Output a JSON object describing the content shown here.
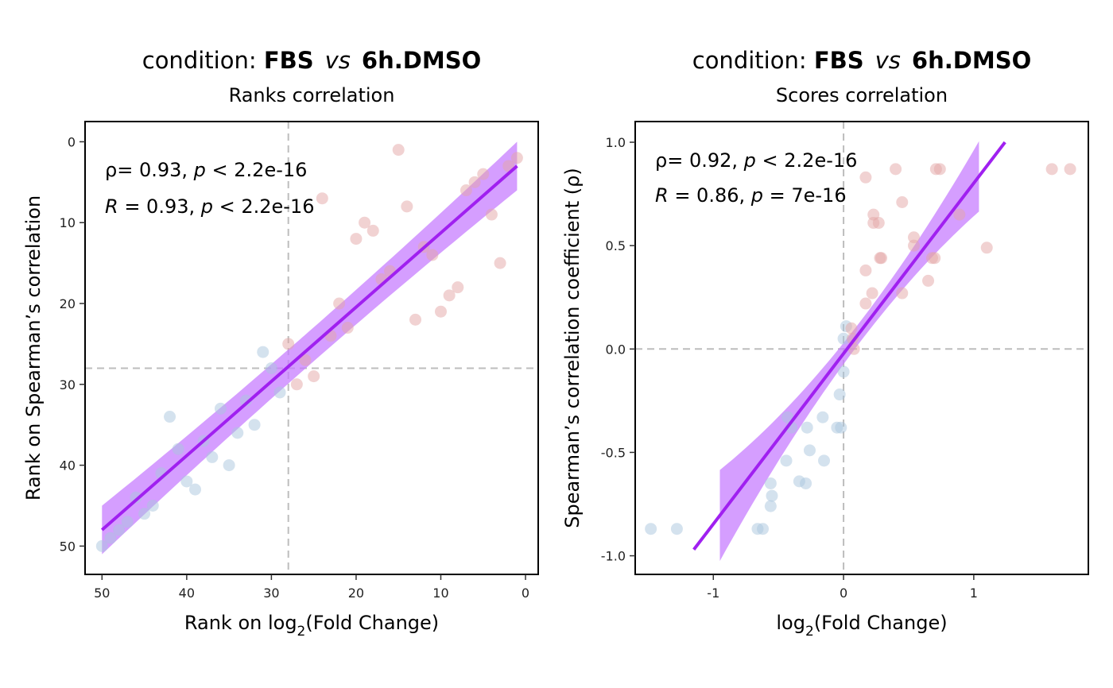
{
  "chart_data": [
    {
      "type": "scatter",
      "title": {
        "prefix": "condition: ",
        "group1": "FBS",
        "vs": "vs",
        "group2": "6h.DMSO"
      },
      "subtitle": "Ranks correlation",
      "xlabel": {
        "pre": "Rank on log",
        "sub": "2",
        "post": "(Fold Change)"
      },
      "ylabel": "Rank on Spearman’s correlation",
      "xlim": [
        52,
        -1.5
      ],
      "ylim": [
        -2.5,
        53.5
      ],
      "x_reversed": true,
      "y_reversed": true,
      "x_ticks": [
        50,
        40,
        30,
        20,
        10,
        0
      ],
      "y_ticks": [
        0,
        10,
        20,
        30,
        40,
        50
      ],
      "grid": false,
      "reference_lines": {
        "vertical": 28,
        "horizontal": 28
      },
      "stats": [
        {
          "label": "ρ",
          "eq": "= 0.93, ",
          "p": "p",
          "rest": " < 2.2e-16"
        },
        {
          "label": "R",
          "eq": " = 0.93, ",
          "p": "p",
          "rest": " < 2.2e-16"
        }
      ],
      "fit": {
        "x": [
          50,
          1
        ],
        "y": [
          48,
          3
        ],
        "band_halfwidth": [
          3.0,
          2.1,
          3.0
        ],
        "color": "#A020F0",
        "band_color": "#C77DFF"
      },
      "colors": {
        "high": "#E3A6A6",
        "low": "#A9C5DE"
      },
      "points": [
        {
          "x": 15,
          "y": 1,
          "c": "high"
        },
        {
          "x": 1,
          "y": 2,
          "c": "high"
        },
        {
          "x": 2,
          "y": 3,
          "c": "high"
        },
        {
          "x": 5,
          "y": 4,
          "c": "high"
        },
        {
          "x": 6,
          "y": 5,
          "c": "high"
        },
        {
          "x": 7,
          "y": 6,
          "c": "high"
        },
        {
          "x": 24,
          "y": 7,
          "c": "high"
        },
        {
          "x": 14,
          "y": 8,
          "c": "high"
        },
        {
          "x": 4,
          "y": 9,
          "c": "high"
        },
        {
          "x": 19,
          "y": 10,
          "c": "high"
        },
        {
          "x": 18,
          "y": 11,
          "c": "high"
        },
        {
          "x": 20,
          "y": 12,
          "c": "high"
        },
        {
          "x": 12,
          "y": 13,
          "c": "high"
        },
        {
          "x": 11,
          "y": 14,
          "c": "high"
        },
        {
          "x": 3,
          "y": 15,
          "c": "high"
        },
        {
          "x": 16,
          "y": 16,
          "c": "high"
        },
        {
          "x": 17,
          "y": 17,
          "c": "high"
        },
        {
          "x": 8,
          "y": 18,
          "c": "high"
        },
        {
          "x": 9,
          "y": 19,
          "c": "high"
        },
        {
          "x": 22,
          "y": 20,
          "c": "high"
        },
        {
          "x": 10,
          "y": 21,
          "c": "high"
        },
        {
          "x": 13,
          "y": 22,
          "c": "high"
        },
        {
          "x": 21,
          "y": 23,
          "c": "high"
        },
        {
          "x": 23,
          "y": 24,
          "c": "high"
        },
        {
          "x": 28,
          "y": 25,
          "c": "high"
        },
        {
          "x": 31,
          "y": 26,
          "c": "low"
        },
        {
          "x": 26,
          "y": 27,
          "c": "high"
        },
        {
          "x": 30,
          "y": 28,
          "c": "low"
        },
        {
          "x": 25,
          "y": 29,
          "c": "high"
        },
        {
          "x": 27,
          "y": 30,
          "c": "high"
        },
        {
          "x": 29,
          "y": 31,
          "c": "low"
        },
        {
          "x": 33,
          "y": 32,
          "c": "low"
        },
        {
          "x": 36,
          "y": 33,
          "c": "low"
        },
        {
          "x": 42,
          "y": 34,
          "c": "low"
        },
        {
          "x": 32,
          "y": 35,
          "c": "low"
        },
        {
          "x": 34,
          "y": 36,
          "c": "low"
        },
        {
          "x": 38,
          "y": 37,
          "c": "low"
        },
        {
          "x": 41,
          "y": 38,
          "c": "low"
        },
        {
          "x": 37,
          "y": 39,
          "c": "low"
        },
        {
          "x": 35,
          "y": 40,
          "c": "low"
        },
        {
          "x": 43,
          "y": 41,
          "c": "low"
        },
        {
          "x": 40,
          "y": 42,
          "c": "low"
        },
        {
          "x": 39,
          "y": 43,
          "c": "low"
        },
        {
          "x": 46,
          "y": 44,
          "c": "low"
        },
        {
          "x": 44,
          "y": 45,
          "c": "low"
        },
        {
          "x": 45,
          "y": 46,
          "c": "low"
        },
        {
          "x": 47,
          "y": 47,
          "c": "low"
        },
        {
          "x": 48,
          "y": 48,
          "c": "low"
        },
        {
          "x": 49,
          "y": 49,
          "c": "low"
        },
        {
          "x": 50,
          "y": 50,
          "c": "low"
        }
      ]
    },
    {
      "type": "scatter",
      "title": {
        "prefix": "condition: ",
        "group1": "FBS",
        "vs": "vs",
        "group2": "6h.DMSO"
      },
      "subtitle": "Scores correlation",
      "xlabel": {
        "pre": "log",
        "sub": "2",
        "post": "(Fold Change)"
      },
      "ylabel": "Spearman’s correlation coefficient (ρ)",
      "xlim": [
        -1.6,
        1.88
      ],
      "ylim": [
        -1.09,
        1.1
      ],
      "x_reversed": false,
      "y_reversed": false,
      "x_ticks": [
        -1,
        0,
        1
      ],
      "y_ticks": [
        1.0,
        0.5,
        0.0,
        -0.5,
        -1.0
      ],
      "y_tick_labels": [
        "1.0",
        "0.5",
        "0.0",
        "-0.5",
        "-1.0"
      ],
      "grid": false,
      "reference_lines": {
        "vertical": 0,
        "horizontal": 0
      },
      "stats": [
        {
          "label": "ρ",
          "eq": "= 0.92, ",
          "p": "p",
          "rest": " < 2.2e-16"
        },
        {
          "label": "R",
          "eq": " = 0.86, ",
          "p": "p",
          "rest": " = 7e-16"
        }
      ],
      "fit": {
        "x": [
          -1.15,
          1.24
        ],
        "y": [
          -0.97,
          1.0
        ],
        "band_x": [
          -0.95,
          1.04
        ],
        "band_halfwidth": [
          0.22,
          0.05,
          0.17
        ],
        "color": "#A020F0",
        "band_color": "#C77DFF"
      },
      "colors": {
        "high": "#E3A6A6",
        "low": "#A9C5DE"
      },
      "points": [
        {
          "x": 1.74,
          "y": 0.87,
          "c": "high"
        },
        {
          "x": 1.6,
          "y": 0.87,
          "c": "high"
        },
        {
          "x": 0.74,
          "y": 0.87,
          "c": "high"
        },
        {
          "x": 0.71,
          "y": 0.87,
          "c": "high"
        },
        {
          "x": 0.4,
          "y": 0.87,
          "c": "high"
        },
        {
          "x": 0.17,
          "y": 0.83,
          "c": "high"
        },
        {
          "x": 0.45,
          "y": 0.71,
          "c": "high"
        },
        {
          "x": 0.23,
          "y": 0.65,
          "c": "high"
        },
        {
          "x": 0.89,
          "y": 0.65,
          "c": "high"
        },
        {
          "x": 0.23,
          "y": 0.61,
          "c": "high"
        },
        {
          "x": 0.27,
          "y": 0.61,
          "c": "high"
        },
        {
          "x": 0.54,
          "y": 0.54,
          "c": "high"
        },
        {
          "x": 0.54,
          "y": 0.5,
          "c": "high"
        },
        {
          "x": 1.1,
          "y": 0.49,
          "c": "high"
        },
        {
          "x": 0.28,
          "y": 0.44,
          "c": "high"
        },
        {
          "x": 0.29,
          "y": 0.44,
          "c": "high"
        },
        {
          "x": 0.68,
          "y": 0.44,
          "c": "high"
        },
        {
          "x": 0.7,
          "y": 0.44,
          "c": "high"
        },
        {
          "x": 0.17,
          "y": 0.38,
          "c": "high"
        },
        {
          "x": 0.65,
          "y": 0.33,
          "c": "high"
        },
        {
          "x": 0.45,
          "y": 0.27,
          "c": "high"
        },
        {
          "x": 0.22,
          "y": 0.27,
          "c": "high"
        },
        {
          "x": 0.17,
          "y": 0.22,
          "c": "high"
        },
        {
          "x": 0.02,
          "y": 0.11,
          "c": "low"
        },
        {
          "x": 0.06,
          "y": 0.1,
          "c": "high"
        },
        {
          "x": 0.0,
          "y": 0.05,
          "c": "low"
        },
        {
          "x": 0.07,
          "y": 0.05,
          "c": "high"
        },
        {
          "x": 0.08,
          "y": 0.0,
          "c": "high"
        },
        {
          "x": 0.0,
          "y": -0.11,
          "c": "low"
        },
        {
          "x": -0.03,
          "y": -0.22,
          "c": "low"
        },
        {
          "x": -0.16,
          "y": -0.33,
          "c": "low"
        },
        {
          "x": -0.43,
          "y": -0.33,
          "c": "low"
        },
        {
          "x": -0.28,
          "y": -0.38,
          "c": "low"
        },
        {
          "x": -0.05,
          "y": -0.38,
          "c": "low"
        },
        {
          "x": -0.02,
          "y": -0.38,
          "c": "low"
        },
        {
          "x": -0.4,
          "y": -0.38,
          "c": "low"
        },
        {
          "x": -0.26,
          "y": -0.49,
          "c": "low"
        },
        {
          "x": -0.44,
          "y": -0.54,
          "c": "low"
        },
        {
          "x": -0.15,
          "y": -0.54,
          "c": "low"
        },
        {
          "x": -0.34,
          "y": -0.64,
          "c": "low"
        },
        {
          "x": -0.29,
          "y": -0.65,
          "c": "low"
        },
        {
          "x": -0.56,
          "y": -0.65,
          "c": "low"
        },
        {
          "x": -0.55,
          "y": -0.71,
          "c": "low"
        },
        {
          "x": -0.56,
          "y": -0.76,
          "c": "low"
        },
        {
          "x": -0.66,
          "y": -0.87,
          "c": "low"
        },
        {
          "x": -0.62,
          "y": -0.87,
          "c": "low"
        },
        {
          "x": -1.28,
          "y": -0.87,
          "c": "low"
        },
        {
          "x": -1.48,
          "y": -0.87,
          "c": "low"
        }
      ]
    }
  ]
}
